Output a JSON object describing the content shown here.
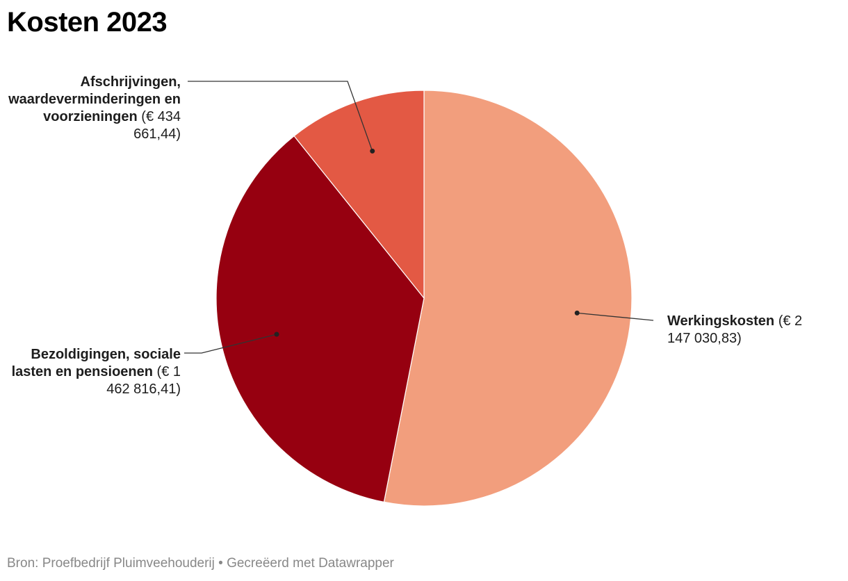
{
  "chart_data": {
    "type": "pie",
    "title": "Kosten 2023",
    "start_angle_deg": 0,
    "direction": "clockwise",
    "slices": [
      {
        "name": "Werkingskosten",
        "value": 2147030.83,
        "value_label": "(€ 2 147 030,83)",
        "color": "#f29e7d"
      },
      {
        "name": "Bezoldigingen, sociale lasten en pensioenen",
        "value": 1462816.41,
        "value_label": "(€ 1 462 816,41)",
        "color": "#960010"
      },
      {
        "name": "Afschrijvingen, waardeverminderingen en voorzieningen",
        "value": 434661.44,
        "value_label": "(€ 434 661,44)",
        "color": "#e35944"
      }
    ]
  },
  "footer": {
    "text": "Bron: Proefbedrijf Pluimveehouderij • Gecreëerd met Datawrapper"
  }
}
